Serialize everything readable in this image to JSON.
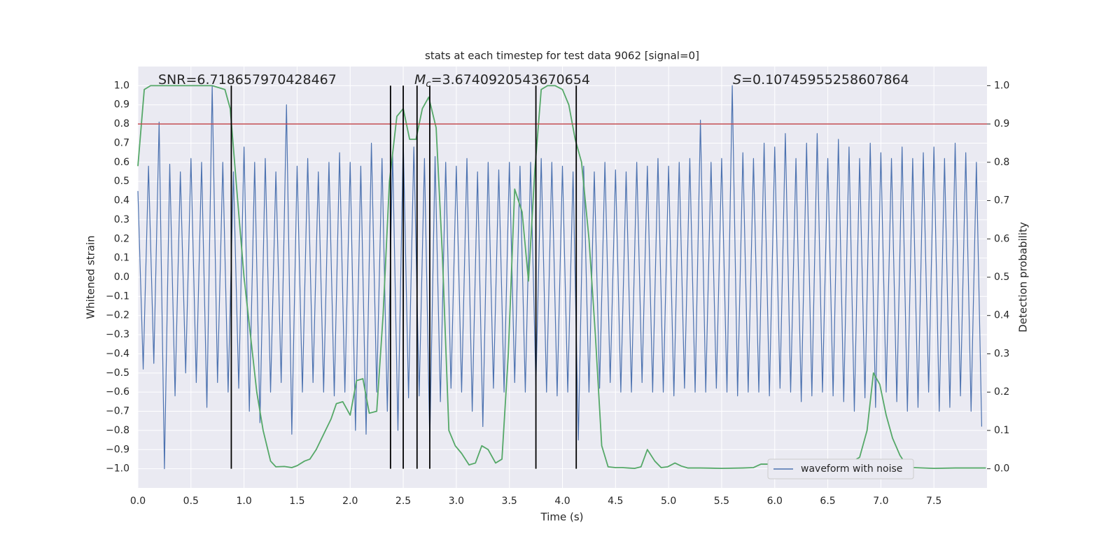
{
  "chart_data": {
    "type": "line",
    "title": "stats at each timestep for test data 9062 [signal=0]",
    "xlabel": "Time (s)",
    "ylabel": "Whitened strain",
    "y2label": "Detection probability",
    "annotations": [
      {
        "text": "SNR=6.718657970428467"
      },
      {
        "italic": "M",
        "sub": "c",
        "text": "=3.6740920543670654"
      },
      {
        "italic": "S",
        "text": "=0.10745955258607864"
      }
    ],
    "xlim": [
      0,
      8
    ],
    "ylim": [
      -1.1,
      1.1
    ],
    "y2lim": [
      -0.05,
      1.05
    ],
    "xticks": [
      {
        "value": 0,
        "label": "0.0"
      },
      0.5,
      {
        "value": 1,
        "label": "1.0"
      },
      1.5,
      {
        "value": 2,
        "label": "2.0"
      },
      2.5,
      {
        "value": 3,
        "label": "3.0"
      },
      3.5,
      {
        "value": 4,
        "label": "4.0"
      },
      4.5,
      {
        "value": 5,
        "label": "5.0"
      },
      5.5,
      {
        "value": 6,
        "label": "6.0"
      },
      6.5,
      {
        "value": 7,
        "label": "7.0"
      },
      7.5
    ],
    "yticks": [
      {
        "value": -1,
        "label": "−1.0"
      },
      {
        "value": -0.9,
        "label": "−0.9"
      },
      {
        "value": -0.8,
        "label": "−0.8"
      },
      {
        "value": -0.7,
        "label": "−0.7"
      },
      {
        "value": -0.6,
        "label": "−0.6"
      },
      {
        "value": -0.5,
        "label": "−0.5"
      },
      {
        "value": -0.4,
        "label": "−0.4"
      },
      {
        "value": -0.3,
        "label": "−0.3"
      },
      {
        "value": -0.2,
        "label": "−0.2"
      },
      {
        "value": -0.1,
        "label": "−0.1"
      },
      {
        "value": 0,
        "label": "0.0"
      },
      0.1,
      0.2,
      0.3,
      0.4,
      0.5,
      0.6,
      0.7,
      0.8,
      0.9,
      {
        "value": 1,
        "label": "1.0"
      }
    ],
    "y2ticks": [
      {
        "value": 0,
        "label": "0.0"
      },
      0.1,
      0.2,
      0.3,
      0.4,
      0.5,
      0.6,
      0.7,
      0.8,
      0.9,
      {
        "value": 1,
        "label": "1.0"
      }
    ],
    "grid": true,
    "legend": "lower right",
    "series": [
      {
        "name": "waveform with noise",
        "color": "#4c72b0",
        "x": [
          0,
          0.05,
          0.1,
          0.15,
          0.2,
          0.25,
          0.3,
          0.35,
          0.4,
          0.45,
          0.5,
          0.55,
          0.6,
          0.65,
          0.7,
          0.75,
          0.8,
          0.85,
          0.9,
          0.95,
          1,
          1.05,
          1.1,
          1.15,
          1.2,
          1.25,
          1.3,
          1.35,
          1.4,
          1.45,
          1.5,
          1.55,
          1.6,
          1.65,
          1.7,
          1.75,
          1.8,
          1.85,
          1.9,
          1.95,
          2,
          2.05,
          2.1,
          2.15,
          2.2,
          2.25,
          2.3,
          2.35,
          2.4,
          2.45,
          2.5,
          2.55,
          2.6,
          2.65,
          2.7,
          2.75,
          2.8,
          2.85,
          2.9,
          2.95,
          3,
          3.05,
          3.1,
          3.15,
          3.2,
          3.25,
          3.3,
          3.35,
          3.4,
          3.45,
          3.5,
          3.55,
          3.6,
          3.65,
          3.7,
          3.75,
          3.8,
          3.85,
          3.9,
          3.95,
          4,
          4.05,
          4.1,
          4.15,
          4.2,
          4.25,
          4.3,
          4.35,
          4.4,
          4.45,
          4.5,
          4.55,
          4.6,
          4.65,
          4.7,
          4.75,
          4.8,
          4.85,
          4.9,
          4.95,
          5,
          5.05,
          5.1,
          5.15,
          5.2,
          5.25,
          5.3,
          5.35,
          5.4,
          5.45,
          5.5,
          5.55,
          5.6,
          5.65,
          5.7,
          5.75,
          5.8,
          5.85,
          5.9,
          5.95,
          6,
          6.05,
          6.1,
          6.15,
          6.2,
          6.25,
          6.3,
          6.35,
          6.4,
          6.45,
          6.5,
          6.55,
          6.6,
          6.65,
          6.7,
          6.75,
          6.8,
          6.85,
          6.9,
          6.95,
          7,
          7.05,
          7.1,
          7.15,
          7.2,
          7.25,
          7.3,
          7.35,
          7.4,
          7.45,
          7.5,
          7.55,
          7.6,
          7.65,
          7.7,
          7.75,
          7.8,
          7.85,
          7.9,
          7.95
        ],
        "values": [
          0.45,
          -0.48,
          0.58,
          -0.45,
          0.81,
          -1.0,
          0.59,
          -0.62,
          0.55,
          -0.5,
          0.62,
          -0.55,
          0.6,
          -0.68,
          1.0,
          -0.55,
          0.6,
          -0.6,
          0.55,
          -0.58,
          0.68,
          -0.7,
          0.6,
          -0.76,
          0.62,
          -0.6,
          0.55,
          -0.55,
          0.9,
          -0.82,
          0.58,
          -0.6,
          0.62,
          -0.55,
          0.55,
          -0.6,
          0.6,
          -0.62,
          0.65,
          -0.6,
          0.6,
          -0.8,
          0.58,
          -0.82,
          0.7,
          -0.6,
          0.62,
          -0.7,
          0.65,
          -0.8,
          0.72,
          -0.63,
          0.68,
          -0.62,
          0.62,
          -0.86,
          0.63,
          -0.65,
          0.6,
          -0.58,
          0.58,
          -0.6,
          0.62,
          -0.7,
          0.55,
          -0.78,
          0.6,
          -0.58,
          0.56,
          -0.6,
          0.6,
          -0.55,
          0.58,
          -0.6,
          0.6,
          -0.57,
          0.62,
          -0.6,
          0.6,
          -0.62,
          0.58,
          -0.6,
          0.55,
          -0.85,
          0.58,
          -0.6,
          0.55,
          -0.58,
          0.6,
          -0.55,
          0.56,
          -0.6,
          0.55,
          -0.6,
          0.6,
          -0.55,
          0.58,
          -0.6,
          0.62,
          -0.6,
          0.58,
          -0.62,
          0.6,
          -0.58,
          0.62,
          -0.6,
          0.82,
          -0.6,
          0.6,
          -0.58,
          0.62,
          -0.6,
          1.0,
          -0.62,
          0.65,
          -0.6,
          0.62,
          -0.6,
          0.7,
          -0.62,
          0.68,
          -0.58,
          0.75,
          -0.6,
          0.62,
          -0.65,
          0.7,
          -0.62,
          0.75,
          -0.6,
          0.62,
          -0.62,
          0.72,
          -0.65,
          0.68,
          -0.7,
          0.62,
          -0.63,
          0.7,
          -0.68,
          0.65,
          -0.6,
          0.62,
          -0.65,
          0.68,
          -0.7,
          0.62,
          -0.68,
          0.65,
          -0.6,
          0.68,
          -0.7,
          0.62,
          -0.68,
          0.7,
          -0.62,
          0.65,
          -0.7,
          0.6,
          -0.78
        ]
      },
      {
        "color": "#55a868",
        "axis": "y2",
        "x": [
          0,
          0.06,
          0.12,
          0.4,
          0.7,
          0.82,
          0.87,
          0.94,
          1.0,
          1.06,
          1.12,
          1.18,
          1.25,
          1.3,
          1.38,
          1.45,
          1.5,
          1.57,
          1.62,
          1.68,
          1.75,
          1.82,
          1.87,
          1.93,
          2.0,
          2.06,
          2.12,
          2.18,
          2.25,
          2.31,
          2.37,
          2.44,
          2.5,
          2.56,
          2.62,
          2.68,
          2.74,
          2.81,
          2.87,
          2.93,
          2.99,
          3.05,
          3.12,
          3.18,
          3.24,
          3.3,
          3.37,
          3.43,
          3.49,
          3.55,
          3.62,
          3.68,
          3.74,
          3.8,
          3.86,
          3.93,
          4.0,
          4.06,
          4.12,
          4.18,
          4.25,
          4.31,
          4.37,
          4.43,
          4.5,
          4.56,
          4.62,
          4.68,
          4.74,
          4.8,
          4.87,
          4.93,
          4.99,
          5.06,
          5.12,
          5.18,
          5.3,
          5.5,
          5.7,
          5.8,
          5.87,
          5.93,
          5.99,
          6.12,
          6.24,
          6.36,
          6.49,
          6.55,
          6.62,
          6.68,
          6.74,
          6.8,
          6.87,
          6.93,
          6.99,
          7.05,
          7.11,
          7.18,
          7.24,
          7.3,
          7.5,
          7.7,
          7.99
        ],
        "values": [
          0.79,
          0.99,
          1.0,
          1.0,
          1.0,
          0.99,
          0.94,
          0.7,
          0.5,
          0.35,
          0.2,
          0.1,
          0.02,
          0.005,
          0.006,
          0.003,
          0.008,
          0.02,
          0.025,
          0.05,
          0.09,
          0.13,
          0.17,
          0.175,
          0.14,
          0.23,
          0.235,
          0.145,
          0.15,
          0.4,
          0.75,
          0.92,
          0.94,
          0.86,
          0.86,
          0.94,
          0.97,
          0.89,
          0.55,
          0.1,
          0.06,
          0.04,
          0.01,
          0.015,
          0.06,
          0.05,
          0.015,
          0.025,
          0.3,
          0.73,
          0.67,
          0.49,
          0.78,
          0.99,
          1.0,
          1.0,
          0.99,
          0.95,
          0.86,
          0.8,
          0.6,
          0.35,
          0.06,
          0.005,
          0.003,
          0.003,
          0.002,
          0.001,
          0.005,
          0.05,
          0.02,
          0.003,
          0.005,
          0.015,
          0.007,
          0.002,
          0.002,
          0.001,
          0.002,
          0.003,
          0.012,
          0.012,
          0.005,
          0.01,
          0.003,
          0.002,
          0.005,
          0.002,
          0.003,
          0.01,
          0.02,
          0.03,
          0.1,
          0.25,
          0.22,
          0.14,
          0.08,
          0.035,
          0.01,
          0.003,
          0.001,
          0.002,
          0.002
        ]
      }
    ],
    "threshold": {
      "value": 0.9,
      "axis": "y2",
      "color": "#c44e52"
    },
    "vlines": {
      "x": [
        0.88,
        2.38,
        2.5,
        2.63,
        2.75,
        3.75,
        4.13
      ],
      "ymin": -1,
      "ymax": 1,
      "color": "#000000"
    }
  }
}
